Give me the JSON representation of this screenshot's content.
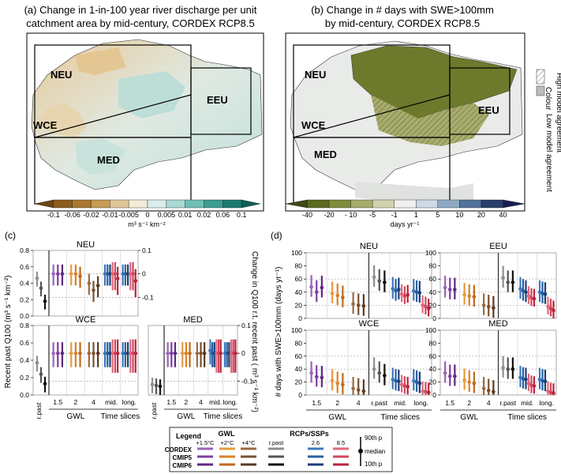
{
  "map_a": {
    "title1": "(a) Change in 1-in-100 year river discharge per unit",
    "title2": "catchment area by mid-century, CORDEX RCP8.5",
    "regions": [
      "NEU",
      "EEU",
      "WCE",
      "MED"
    ],
    "colorbar_ticks": [
      "-0.1",
      "-0.06",
      "-0.02",
      "-0.01",
      "-0.005",
      "0",
      "0.005",
      "0.01",
      "0.02",
      "0.06",
      "0.1"
    ],
    "colorbar_colors": [
      "#6b4512",
      "#8c5d1e",
      "#a8782f",
      "#c69b55",
      "#e1c597",
      "#f4ead8",
      "#d9eeec",
      "#a8d9d4",
      "#6fbfb6",
      "#3a9d93",
      "#1b7a70",
      "#0d5e55"
    ],
    "unit": "m³ s⁻¹ km⁻²"
  },
  "map_b": {
    "title1": "(b) Change in # days with SWE>100mm",
    "title2": "by mid-century, CORDEX RCP8.5",
    "regions": [
      "NEU",
      "EEU",
      "WCE",
      "MED"
    ],
    "colorbar_ticks": [
      "-40",
      "-20",
      "- 10",
      "-5",
      "-1",
      "1",
      "5",
      "10",
      "20",
      "40"
    ],
    "colorbar_colors": [
      "#3d4a13",
      "#5b6a1f",
      "#7e8c3a",
      "#a5ad6a",
      "#d0d3ad",
      "#f0f0f0",
      "#cdd9e6",
      "#8fa9c4",
      "#51729a",
      "#2a3f6b",
      "#191d52"
    ],
    "unit": "days yr⁻¹",
    "legend_colour": "Colour",
    "legend_high": "High model agreement",
    "legend_low": "Low model agreement"
  },
  "panel_c": {
    "label": "(c)",
    "ylabel_left": "Recent past Q100 (m³ s⁻¹ km⁻²)",
    "ylabel_right": "Change in Q100 r.t. recent past ( m³ s⁻¹ km⁻²)",
    "left_ticks": [
      "0.0",
      "0.2",
      "0.4",
      "0.6",
      "0.8"
    ],
    "right_ticks": [
      "0.1",
      "0",
      "-0.1"
    ],
    "xticks": [
      "r.past",
      "1.5",
      "2",
      "4",
      "mid.",
      "long."
    ],
    "group_gwl": "GWL",
    "group_time": "Time slices"
  },
  "panel_d": {
    "label": "(d)",
    "ylabel": "# days with SWE>100mm (days yr⁻¹)",
    "ticks": [
      "0",
      "20",
      "40",
      "60",
      "80",
      "100"
    ],
    "xticks": [
      "1.5",
      "2",
      "4",
      "r.past",
      "mid.",
      "long."
    ],
    "group_gwl": "GWL",
    "group_time": "Time slices"
  },
  "legend": {
    "title": "Legend",
    "gwl_head": "GWL",
    "gwl_cols": [
      "+1.5°C",
      "+2°C",
      "+4°C"
    ],
    "rcp_head": "RCPs/SSPs",
    "rcp_cols": [
      "r.past",
      "2.6",
      "8.5"
    ],
    "rows": [
      "CORDEX",
      "CMIP5",
      "CMIP6"
    ],
    "gwl_colors": [
      [
        "#9a63b5",
        "#e69a3f",
        "#9a6b3e"
      ],
      [
        "#7d3f9e",
        "#d9822b",
        "#7a5230"
      ],
      [
        "#5e2a80",
        "#c06a1a",
        "#5a3a20"
      ]
    ],
    "rcp_colors": [
      [
        "#8e8e8e",
        "#3c78bf",
        "#e06a7a"
      ],
      [
        "#555555",
        "#2a5fa0",
        "#d1475d"
      ],
      [
        "#111111",
        "#1a3f78",
        "#b7243f"
      ]
    ],
    "p90": "90th p",
    "median": "median",
    "p10": "10th p"
  },
  "chart_data": [
    {
      "type": "scatter",
      "title": "NEU",
      "panel": "(c)",
      "ylim": [
        0,
        0.8
      ],
      "y2lim": [
        -0.18,
        0.1
      ],
      "series": [
        {
          "name": "r.past",
          "values": [
            0.46,
            0.34,
            0.18
          ]
        },
        {
          "name": "+1.5°C",
          "values": [
            0.0,
            0.0,
            0.0
          ]
        },
        {
          "name": "+2°C",
          "values": [
            0.0,
            0.0,
            -0.01
          ]
        },
        {
          "name": "+4°C",
          "values": [
            -0.04,
            -0.07,
            -0.05
          ]
        },
        {
          "name": "mid. 2.6",
          "values": [
            0.0,
            0.0,
            0.0
          ]
        },
        {
          "name": "long. 2.6",
          "values": [
            0.0,
            0.0,
            0.0
          ]
        },
        {
          "name": "mid. 8.5",
          "values": [
            0.0,
            0.0,
            -0.02
          ]
        },
        {
          "name": "long. 8.5",
          "values": [
            0.0,
            0.0,
            -0.03
          ]
        }
      ]
    },
    {
      "type": "scatter",
      "title": "WCE",
      "panel": "(c)",
      "ylim": [
        0,
        0.8
      ],
      "y2lim": [
        -0.15,
        0.1
      ],
      "series": [
        {
          "name": "r.past",
          "values": [
            0.37,
            0.24,
            0.13
          ]
        },
        {
          "name": "+1.5°C",
          "values": [
            0.0,
            0.0,
            0.0
          ]
        },
        {
          "name": "+2°C",
          "values": [
            0.0,
            0.0,
            0.0
          ]
        },
        {
          "name": "+4°C",
          "values": [
            0.0,
            0.0,
            0.0
          ]
        },
        {
          "name": "mid. 2.6",
          "values": [
            0.0,
            0.0,
            0.0
          ]
        },
        {
          "name": "long. 2.6",
          "values": [
            0.0,
            0.0,
            0.0
          ]
        },
        {
          "name": "mid. 8.5",
          "values": [
            0.0,
            0.0,
            0.0
          ]
        },
        {
          "name": "long. 8.5",
          "values": [
            0.0,
            0.0,
            0.0
          ]
        }
      ]
    },
    {
      "type": "scatter",
      "title": "MED",
      "panel": "(c)",
      "ylim": [
        0,
        0.8
      ],
      "y2lim": [
        -0.15,
        0.1
      ],
      "series": [
        {
          "name": "r.past",
          "values": [
            0.12,
            0.11,
            0.1
          ]
        },
        {
          "name": "+1.5°C",
          "values": [
            0.0,
            0.0,
            0.0
          ]
        },
        {
          "name": "+2°C",
          "values": [
            0.0,
            0.0,
            0.0
          ]
        },
        {
          "name": "+4°C",
          "values": [
            0.0,
            0.0,
            0.0
          ]
        },
        {
          "name": "mid. 2.6",
          "values": [
            0.01,
            0.0,
            0.0
          ]
        },
        {
          "name": "long. 2.6",
          "values": [
            0.0,
            0.0,
            0.0
          ]
        },
        {
          "name": "mid. 8.5",
          "values": [
            0.0,
            0.0,
            0.0
          ]
        },
        {
          "name": "long. 8.5",
          "values": [
            0.0,
            0.0,
            0.0
          ]
        }
      ]
    },
    {
      "type": "scatter",
      "title": "NEU",
      "panel": "(d)",
      "ylim": [
        0,
        100
      ],
      "series": [
        {
          "name": "+1.5°C",
          "values": [
            48,
            40,
            47
          ]
        },
        {
          "name": "+2°C",
          "values": [
            38,
            35,
            32
          ]
        },
        {
          "name": "+4°C",
          "values": [
            22,
            20,
            19
          ]
        },
        {
          "name": "r.past",
          "values": [
            63,
            57,
            55
          ]
        },
        {
          "name": "mid. 2.6",
          "values": [
            45,
            42,
            44
          ]
        },
        {
          "name": "mid. 8.5",
          "values": [
            37,
            34,
            36
          ]
        },
        {
          "name": "long. 2.6",
          "values": [
            42,
            40,
            39
          ]
        },
        {
          "name": "long. 8.5",
          "values": [
            20,
            18,
            15
          ]
        }
      ]
    },
    {
      "type": "scatter",
      "title": "EEU",
      "panel": "(d)",
      "ylim": [
        0,
        100
      ],
      "series": [
        {
          "name": "+1.5°C",
          "values": [
            47,
            44,
            44
          ]
        },
        {
          "name": "+2°C",
          "values": [
            36,
            34,
            33
          ]
        },
        {
          "name": "+4°C",
          "values": [
            20,
            18,
            16
          ]
        },
        {
          "name": "r.past",
          "values": [
            62,
            55,
            55
          ]
        },
        {
          "name": "mid. 2.6",
          "values": [
            45,
            42,
            40
          ]
        },
        {
          "name": "mid. 8.5",
          "values": [
            34,
            31,
            30
          ]
        },
        {
          "name": "long. 2.6",
          "values": [
            40,
            38,
            37
          ]
        },
        {
          "name": "long. 8.5",
          "values": [
            18,
            15,
            12
          ]
        }
      ]
    },
    {
      "type": "scatter",
      "title": "WCE",
      "panel": "(d)",
      "ylim": [
        0,
        100
      ],
      "series": [
        {
          "name": "+1.5°C",
          "values": [
            34,
            28,
            27
          ]
        },
        {
          "name": "+2°C",
          "values": [
            22,
            18,
            16
          ]
        },
        {
          "name": "+4°C",
          "values": [
            10,
            8,
            6
          ]
        },
        {
          "name": "r.past",
          "values": [
            40,
            34,
            30
          ]
        },
        {
          "name": "mid. 2.6",
          "values": [
            24,
            22,
            21
          ]
        },
        {
          "name": "mid. 8.5",
          "values": [
            16,
            14,
            13
          ]
        },
        {
          "name": "long. 2.6",
          "values": [
            22,
            20,
            18
          ]
        },
        {
          "name": "long. 8.5",
          "values": [
            6,
            5,
            4
          ]
        }
      ]
    },
    {
      "type": "scatter",
      "title": "MED",
      "panel": "(d)",
      "ylim": [
        0,
        100
      ],
      "series": [
        {
          "name": "+1.5°C",
          "values": [
            34,
            29,
            29
          ]
        },
        {
          "name": "+2°C",
          "values": [
            23,
            20,
            18
          ]
        },
        {
          "name": "+4°C",
          "values": [
            10,
            7,
            5
          ]
        },
        {
          "name": "r.past",
          "values": [
            42,
            40,
            40
          ]
        },
        {
          "name": "mid. 2.6",
          "values": [
            27,
            25,
            24
          ]
        },
        {
          "name": "mid. 8.5",
          "values": [
            18,
            15,
            14
          ]
        },
        {
          "name": "long. 2.6",
          "values": [
            24,
            22,
            21
          ]
        },
        {
          "name": "long. 8.5",
          "values": [
            6,
            4,
            3
          ]
        }
      ]
    }
  ]
}
